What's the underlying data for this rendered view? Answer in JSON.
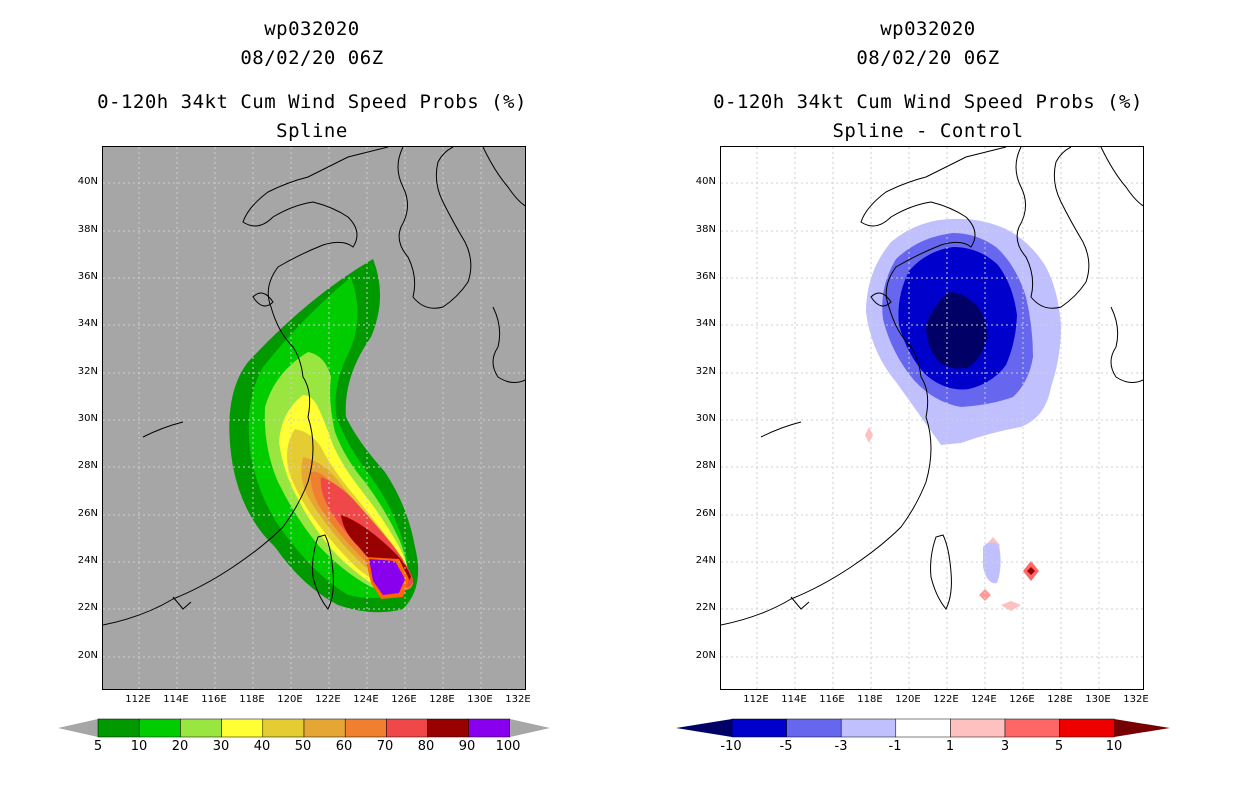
{
  "left": {
    "title1": "wp032020",
    "title2": "08/02/20 06Z",
    "title3": "0-120h 34kt Cum Wind Speed Probs (%)",
    "title4": "Spline",
    "colorbar": {
      "colors": [
        "#009900",
        "#00cc00",
        "#99e640",
        "#ffff33",
        "#e6cc33",
        "#e6a633",
        "#f08030",
        "#f04848",
        "#990000",
        "#8800ee"
      ],
      "labels": [
        "5",
        "10",
        "20",
        "30",
        "40",
        "50",
        "60",
        "70",
        "80",
        "90",
        "100"
      ]
    }
  },
  "right": {
    "title1": "wp032020",
    "title2": "08/02/20 06Z",
    "title3": "0-120h 34kt Cum Wind Speed Probs (%)",
    "title4": "Spline - Control",
    "colorbar": {
      "colors": [
        "#0000cc",
        "#6666ee",
        "#c0c0ff",
        "#ffffff",
        "#ffc0c0",
        "#ff6666",
        "#ee0000"
      ],
      "labels": [
        "-10",
        "-5",
        "-3",
        "-1",
        "1",
        "3",
        "5",
        "10"
      ]
    }
  },
  "axes": {
    "lat_labels": [
      "40N",
      "38N",
      "36N",
      "34N",
      "32N",
      "30N",
      "28N",
      "26N",
      "24N",
      "22N",
      "20N"
    ],
    "lon_labels": [
      "112E",
      "114E",
      "116E",
      "118E",
      "120E",
      "122E",
      "124E",
      "126E",
      "128E",
      "130E",
      "132E"
    ]
  }
}
